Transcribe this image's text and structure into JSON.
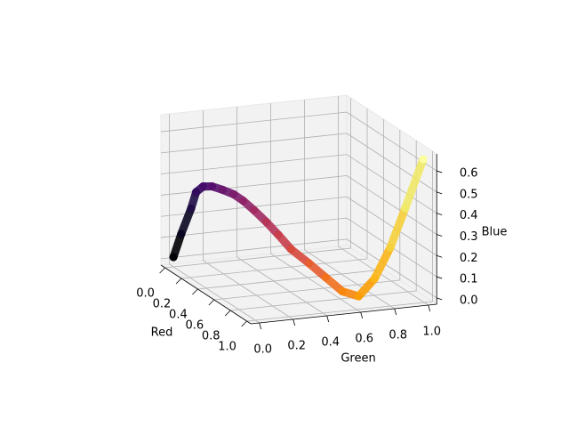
{
  "chart_data": {
    "type": "scatter3d",
    "xlabel": "Red",
    "ylabel": "Green",
    "zlabel": "Blue",
    "xlim": [
      -0.05,
      1.05
    ],
    "ylim": [
      -0.05,
      1.05
    ],
    "zlim": [
      -0.03,
      0.68
    ],
    "xticks": [
      {
        "value": 0,
        "label": "0.0"
      },
      0.2,
      0.4,
      0.6,
      0.8,
      {
        "value": 1,
        "label": "1.0"
      }
    ],
    "yticks": [
      {
        "value": 0,
        "label": "0.0"
      },
      0.2,
      0.4,
      0.6,
      0.8,
      {
        "value": 1,
        "label": "1.0"
      }
    ],
    "zticks": [
      {
        "value": 0,
        "label": "0.0"
      },
      0.1,
      0.2,
      0.3,
      0.4,
      0.5,
      0.6
    ],
    "grid": true,
    "series": [
      {
        "x": [
          0,
          0.039,
          0.118,
          0.196,
          0.275,
          0.341,
          0.416,
          0.49,
          0.561,
          0.635,
          0.714,
          0.78,
          0.847,
          0.902,
          0.945,
          0.973,
          0.984,
          0.984,
          0.965,
          0.945,
          0.988
        ],
        "y": [
          0,
          0.027,
          0.047,
          0.039,
          0.043,
          0.063,
          0.09,
          0.118,
          0.141,
          0.169,
          0.204,
          0.243,
          0.286,
          0.365,
          0.443,
          0.529,
          0.62,
          0.714,
          0.816,
          0.914,
          1.0
        ],
        "z": [
          0.016,
          0.133,
          0.271,
          0.369,
          0.416,
          0.431,
          0.431,
          0.427,
          0.412,
          0.384,
          0.345,
          0.298,
          0.243,
          0.184,
          0.122,
          0.055,
          0.027,
          0.102,
          0.235,
          0.408,
          0.643
        ],
        "colors": [
          "#000004",
          "#0a0722",
          "#1e0c45",
          "#320a5e",
          "#460b6a",
          "#57106e",
          "#6a176e",
          "#7d1e6d",
          "#8f2469",
          "#a22b62",
          "#b63458",
          "#c73e4c",
          "#d8493e",
          "#e65d2f",
          "#f1711f",
          "#f8870e",
          "#fb9e07",
          "#fbb61a",
          "#f6d03c",
          "#f1e968",
          "#fcffa4"
        ]
      }
    ]
  }
}
